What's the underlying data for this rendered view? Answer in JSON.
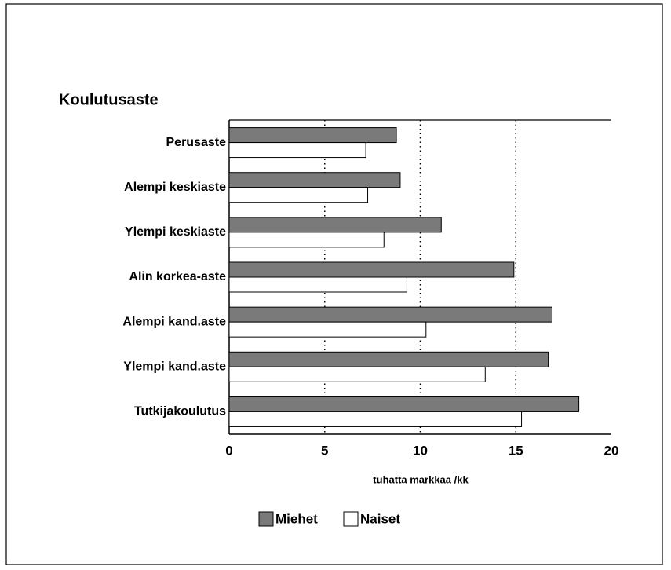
{
  "chart_data": {
    "type": "barh",
    "title": "Koulutusaste",
    "categories": [
      "Perusaste",
      "Alempi keskiaste",
      "Ylempi keskiaste",
      "Alin korkea-aste",
      "Alempi kand.aste",
      "Ylempi kand.aste",
      "Tutkijakoulutus"
    ],
    "series": [
      {
        "name": "Miehet",
        "color": "#7a7a7a",
        "values": [
          8.75,
          8.95,
          11.1,
          14.9,
          16.9,
          16.7,
          18.3
        ]
      },
      {
        "name": "Naiset",
        "color": "#ffffff",
        "values": [
          7.15,
          7.25,
          8.1,
          9.3,
          10.3,
          13.4,
          15.3
        ]
      }
    ],
    "xlabel": "tuhatta markkaa /kk",
    "xlim": [
      0,
      20
    ],
    "xticks": [
      0,
      5,
      10,
      15,
      20
    ],
    "grid": true,
    "legend": "bottom"
  }
}
